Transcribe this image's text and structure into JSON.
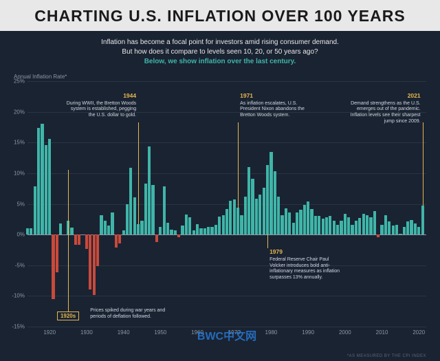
{
  "title": "CHARTING U.S. INFLATION OVER 100 YEARS",
  "intro": {
    "line1": "Inflation has become a focal point for investors amid rising consumer demand.",
    "line2": "But how does it compare to levels seen 10, 20, or 50 years ago?",
    "line3": "Below, we show inflation over the last century."
  },
  "axis_label": "Annual Inflation Rate*",
  "footnote": "*AS MEASURED BY THE CPI INDEX",
  "watermark": "BWC中文网",
  "chart": {
    "type": "bar",
    "ylim": [
      -15,
      25
    ],
    "yticks": [
      -15,
      -10,
      -5,
      0,
      5,
      10,
      15,
      20,
      25
    ],
    "xlim": [
      1914,
      2022
    ],
    "xticks": [
      1920,
      1930,
      1940,
      1950,
      1960,
      1970,
      1980,
      1990,
      2000,
      2010,
      2020
    ],
    "bar_color_pos": "#3fb5a8",
    "bar_color_neg": "#c94a3b",
    "grid_color": "#2a3442",
    "zero_color": "#8a98a8",
    "background": "#1a2332",
    "bar_width_ratio": 0.78,
    "years": [
      1914,
      1915,
      1916,
      1917,
      1918,
      1919,
      1920,
      1921,
      1922,
      1923,
      1924,
      1925,
      1926,
      1927,
      1928,
      1929,
      1930,
      1931,
      1932,
      1933,
      1934,
      1935,
      1936,
      1937,
      1938,
      1939,
      1940,
      1941,
      1942,
      1943,
      1944,
      1945,
      1946,
      1947,
      1948,
      1949,
      1950,
      1951,
      1952,
      1953,
      1954,
      1955,
      1956,
      1957,
      1958,
      1959,
      1960,
      1961,
      1962,
      1963,
      1964,
      1965,
      1966,
      1967,
      1968,
      1969,
      1970,
      1971,
      1972,
      1973,
      1974,
      1975,
      1976,
      1977,
      1978,
      1979,
      1980,
      1981,
      1982,
      1983,
      1984,
      1985,
      1986,
      1987,
      1988,
      1989,
      1990,
      1991,
      1992,
      1993,
      1994,
      1995,
      1996,
      1997,
      1998,
      1999,
      2000,
      2001,
      2002,
      2003,
      2004,
      2005,
      2006,
      2007,
      2008,
      2009,
      2010,
      2011,
      2012,
      2013,
      2014,
      2015,
      2016,
      2017,
      2018,
      2019,
      2020,
      2021
    ],
    "values": [
      1.0,
      1.0,
      7.9,
      17.4,
      18.0,
      14.6,
      15.6,
      -10.5,
      -6.1,
      1.8,
      0.0,
      2.3,
      1.1,
      -1.7,
      -1.7,
      0.0,
      -2.3,
      -9.0,
      -9.9,
      -5.1,
      3.1,
      2.2,
      1.5,
      3.6,
      -2.1,
      -1.4,
      0.7,
      5.0,
      10.9,
      6.1,
      1.7,
      2.3,
      8.3,
      14.4,
      8.1,
      -1.2,
      1.3,
      7.9,
      1.9,
      0.8,
      0.7,
      -0.4,
      1.5,
      3.3,
      2.8,
      0.7,
      1.7,
      1.0,
      1.0,
      1.3,
      1.3,
      1.6,
      2.9,
      3.1,
      4.2,
      5.5,
      5.7,
      4.4,
      3.2,
      6.2,
      11.0,
      9.1,
      5.8,
      6.5,
      7.6,
      11.3,
      13.5,
      10.3,
      6.2,
      3.2,
      4.3,
      3.6,
      1.9,
      3.6,
      4.1,
      4.8,
      5.4,
      4.2,
      3.0,
      3.0,
      2.6,
      2.8,
      3.0,
      2.3,
      1.6,
      2.2,
      3.4,
      2.8,
      1.6,
      2.3,
      2.7,
      3.4,
      3.2,
      2.8,
      3.8,
      -0.4,
      1.6,
      3.2,
      2.1,
      1.5,
      1.6,
      0.1,
      1.3,
      2.1,
      2.4,
      1.8,
      1.2,
      4.7
    ]
  },
  "annotations": {
    "a1944": {
      "year": "1944",
      "text": "During WWII, the Bretton Woods system is established, pegging the U.S. dollar to gold."
    },
    "a1971": {
      "year": "1971",
      "text": "As inflation escalates, U.S. President Nixon abandons the Bretton Woods system."
    },
    "a1979": {
      "year": "1979",
      "text": "Federal Reserve Chair Paul Volcker introduces bold anti-inflationary measures as inflation surpasses 13% annually."
    },
    "a2021": {
      "year": "2021",
      "text": "Demand strengthens as the U.S. emerges out of the pandemic. Inflation levels see their sharpest jump since 2009."
    },
    "decade_label": "1920s",
    "decade_text": "Prices spiked during war years and periods of deflation followed."
  }
}
